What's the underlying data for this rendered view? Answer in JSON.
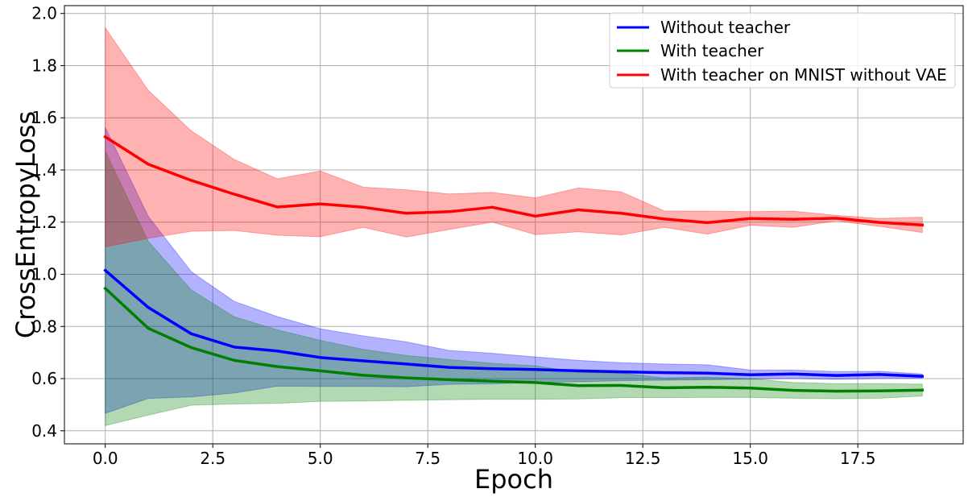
{
  "chart_data": {
    "type": "line",
    "title": "",
    "xlabel": "Epoch",
    "ylabel": "CrossEntropyLoss",
    "xlim": [
      -0.95,
      19.95
    ],
    "ylim": [
      0.35,
      2.03
    ],
    "grid": true,
    "legend_position": "top-right",
    "x_ticks": [
      0.0,
      2.5,
      5.0,
      7.5,
      10.0,
      12.5,
      15.0,
      17.5
    ],
    "x_tick_labels": [
      "0.0",
      "2.5",
      "5.0",
      "7.5",
      "10.0",
      "12.5",
      "15.0",
      "17.5"
    ],
    "y_ticks": [
      0.4,
      0.6,
      0.8,
      1.0,
      1.2,
      1.4,
      1.6,
      1.8,
      2.0
    ],
    "y_tick_labels": [
      "0.4",
      "0.6",
      "0.8",
      "1.0",
      "1.2",
      "1.4",
      "1.6",
      "1.8",
      "2.0"
    ],
    "x": [
      0,
      1,
      2,
      3,
      4,
      5,
      6,
      7,
      8,
      9,
      10,
      11,
      12,
      13,
      14,
      15,
      16,
      17,
      18,
      19
    ],
    "series": [
      {
        "name": "Without teacher",
        "color": "#0000ff",
        "band_color": "#0000ff",
        "values": [
          1.015,
          0.873,
          0.772,
          0.721,
          0.706,
          0.681,
          0.668,
          0.656,
          0.643,
          0.638,
          0.635,
          0.63,
          0.626,
          0.623,
          0.621,
          0.615,
          0.618,
          0.612,
          0.616,
          0.609
        ],
        "lower": [
          0.467,
          0.524,
          0.53,
          0.545,
          0.571,
          0.57,
          0.57,
          0.569,
          0.578,
          0.58,
          0.585,
          0.588,
          0.592,
          0.594,
          0.596,
          0.598,
          0.6,
          0.597,
          0.6,
          0.601
        ],
        "upper": [
          1.563,
          1.222,
          1.01,
          0.896,
          0.838,
          0.791,
          0.764,
          0.741,
          0.708,
          0.697,
          0.683,
          0.67,
          0.661,
          0.656,
          0.653,
          0.633,
          0.633,
          0.627,
          0.628,
          0.618
        ]
      },
      {
        "name": "With teacher",
        "color": "#008000",
        "band_color": "#008000",
        "values": [
          0.946,
          0.793,
          0.719,
          0.67,
          0.646,
          0.63,
          0.613,
          0.603,
          0.596,
          0.59,
          0.585,
          0.573,
          0.574,
          0.565,
          0.567,
          0.564,
          0.555,
          0.552,
          0.553,
          0.556
        ],
        "lower": [
          0.42,
          0.46,
          0.498,
          0.503,
          0.505,
          0.513,
          0.514,
          0.517,
          0.519,
          0.521,
          0.521,
          0.522,
          0.527,
          0.527,
          0.528,
          0.528,
          0.525,
          0.523,
          0.525,
          0.533
        ],
        "upper": [
          1.472,
          1.126,
          0.94,
          0.837,
          0.787,
          0.747,
          0.712,
          0.689,
          0.673,
          0.659,
          0.649,
          0.624,
          0.621,
          0.603,
          0.606,
          0.6,
          0.585,
          0.581,
          0.581,
          0.579
        ]
      },
      {
        "name": "With teacher on MNIST without VAE",
        "color": "#ff0000",
        "band_color": "#ff0000",
        "values": [
          1.527,
          1.422,
          1.36,
          1.307,
          1.258,
          1.27,
          1.257,
          1.234,
          1.24,
          1.257,
          1.223,
          1.247,
          1.234,
          1.212,
          1.198,
          1.214,
          1.211,
          1.215,
          1.199,
          1.189
        ],
        "lower": [
          1.105,
          1.138,
          1.165,
          1.168,
          1.15,
          1.144,
          1.18,
          1.143,
          1.172,
          1.2,
          1.152,
          1.163,
          1.151,
          1.18,
          1.154,
          1.188,
          1.18,
          1.205,
          1.184,
          1.16
        ],
        "upper": [
          1.945,
          1.705,
          1.55,
          1.44,
          1.366,
          1.396,
          1.334,
          1.324,
          1.308,
          1.314,
          1.293,
          1.331,
          1.316,
          1.243,
          1.242,
          1.24,
          1.242,
          1.226,
          1.214,
          1.219
        ]
      }
    ]
  }
}
